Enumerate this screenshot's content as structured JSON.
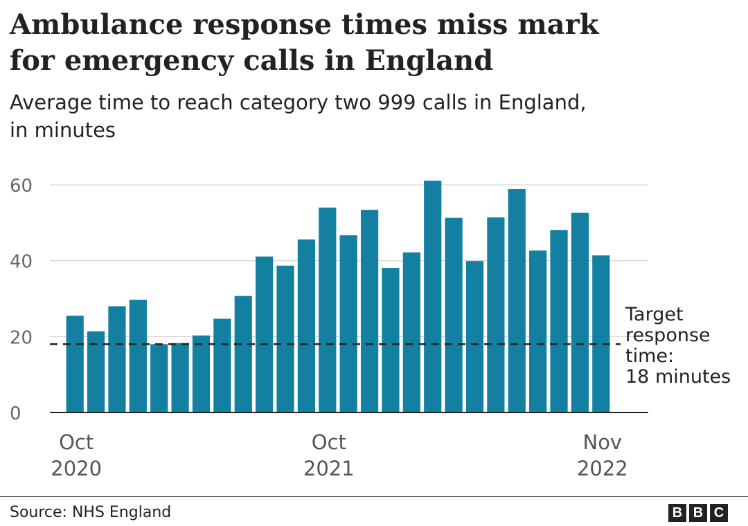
{
  "header": {
    "title_lines": [
      "Ambulance response times miss mark",
      "for emergency calls in England"
    ],
    "subtitle_lines": [
      "Average time to reach category two 999 calls in England,",
      "in minutes"
    ]
  },
  "chart_data": {
    "type": "bar",
    "color": "#1380a1",
    "categories": [
      "Oct 2020",
      "Nov 2020",
      "Dec 2020",
      "Jan 2021",
      "Feb 2021",
      "Mar 2021",
      "Apr 2021",
      "May 2021",
      "Jun 2021",
      "Jul 2021",
      "Aug 2021",
      "Sep 2021",
      "Oct 2021",
      "Nov 2021",
      "Dec 2021",
      "Jan 2022",
      "Feb 2022",
      "Mar 2022",
      "Apr 2022",
      "May 2022",
      "Jun 2022",
      "Jul 2022",
      "Aug 2022",
      "Sep 2022",
      "Oct 2022",
      "Nov 2022"
    ],
    "values": [
      25.5,
      21.4,
      28.0,
      29.7,
      18.0,
      18.3,
      20.3,
      24.7,
      30.7,
      41.1,
      38.7,
      45.6,
      54.0,
      46.7,
      53.4,
      38.1,
      42.2,
      61.1,
      51.3,
      39.9,
      51.4,
      58.9,
      42.7,
      48.1,
      52.6,
      41.4
    ],
    "ylim": [
      0,
      60
    ],
    "yticks": [
      0,
      20,
      40,
      60
    ],
    "x_tick_labels": [
      {
        "index": 0,
        "lines": [
          "Oct",
          "2020"
        ]
      },
      {
        "index": 12,
        "lines": [
          "Oct",
          "2021"
        ]
      },
      {
        "index": 25,
        "lines": [
          "Nov",
          "2022"
        ]
      }
    ],
    "grid": true,
    "reference_line": {
      "value": 18,
      "label_lines": [
        "Target",
        "response",
        "time:",
        "18 minutes"
      ]
    }
  },
  "footer": {
    "source": "Source: NHS England",
    "brand_letters": [
      "B",
      "B",
      "C"
    ]
  }
}
